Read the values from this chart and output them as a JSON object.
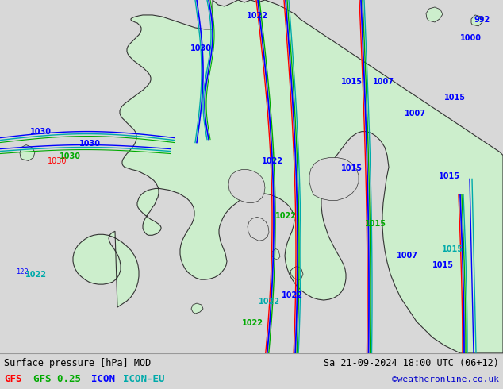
{
  "title_left": "Surface pressure [hPa] MOD",
  "title_right": "Sa 21-09-2024 18:00 UTC (06+12)",
  "legend_items": [
    {
      "label": "GFS",
      "color": "#ff0000"
    },
    {
      "label": "GFS 0.25",
      "color": "#00aa00"
    },
    {
      "label": "ICON",
      "color": "#0000ff"
    },
    {
      "label": "ICON-EU",
      "color": "#00aaaa"
    }
  ],
  "credit": "©weatheronline.co.uk",
  "bg_color": "#d8d8d8",
  "map_bg_land": "#cceecc",
  "map_bg_sea": "#d8d8d8",
  "bottom_bar_color": "#d8d8d8",
  "fig_width": 6.34,
  "fig_height": 4.9,
  "dpi": 100,
  "colors": {
    "gfs": "#ff0000",
    "gfs025": "#00aa00",
    "icon": "#0000ff",
    "iconeu": "#00aaaa",
    "coastline": "#333333",
    "label_blue": "#0000ff",
    "label_cyan": "#00aaaa",
    "label_green": "#00aa00"
  }
}
